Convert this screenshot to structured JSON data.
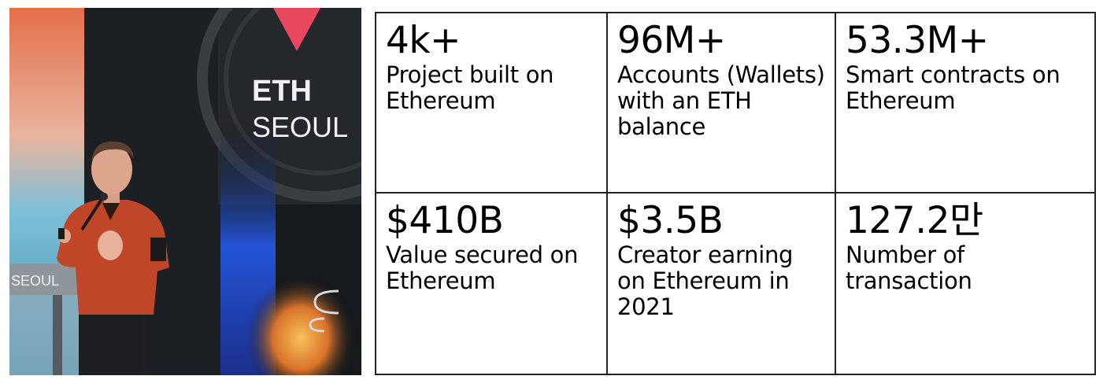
{
  "photo": {
    "backdrop_text_line1": "ETH",
    "backdrop_text_line2": "SEOUL",
    "podium_text": "SEOUL"
  },
  "stats": [
    {
      "value": "4k+",
      "label": "Project built on Ethereum"
    },
    {
      "value": "96M+",
      "label": "Accounts (Wallets) with an ETH balance"
    },
    {
      "value": "53.3M+",
      "label": "Smart contracts on Ethereum"
    },
    {
      "value": "$410B",
      "label": "Value secured on Ethereum"
    },
    {
      "value": "$3.5B",
      "label": "Creator earning on Ethereum in 2021"
    },
    {
      "value": "127.2만",
      "label": "Number of transaction"
    }
  ],
  "colors": {
    "backdrop": "#16191c",
    "logo_accent": "#e8475f",
    "speaker_shirt": "#c0462a",
    "grid_border": "#222222"
  }
}
